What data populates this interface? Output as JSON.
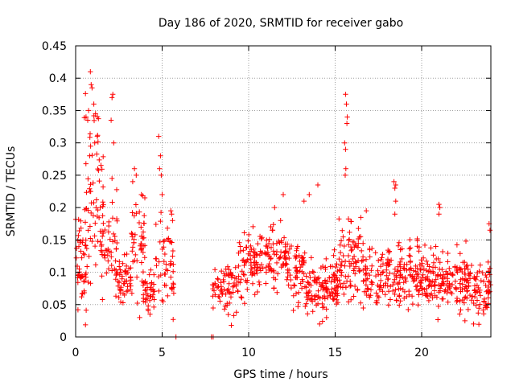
{
  "chart_data": {
    "type": "scatter",
    "title": "Day 186 of 2020, SRMTID for receiver gabo",
    "xlabel": "GPS time / hours",
    "ylabel": "SRMTID / TECUs",
    "xlim": [
      0,
      24
    ],
    "ylim": [
      0,
      0.45
    ],
    "xticks": [
      0,
      5,
      10,
      15,
      20
    ],
    "xtick_labels": [
      "0",
      "5",
      "10",
      "15",
      "20"
    ],
    "yticks": [
      0,
      0.05,
      0.1,
      0.15,
      0.2,
      0.25,
      0.3,
      0.35,
      0.4,
      0.45
    ],
    "ytick_labels": [
      "0",
      "0.05",
      "0.1",
      "0.15",
      "0.2",
      "0.25",
      "0.3",
      "0.35",
      "0.4",
      "0.45"
    ],
    "grid": true,
    "marker": "plus",
    "color": "#ff0000",
    "seed": 186,
    "point_clusters": [
      {
        "x_range": [
          0.0,
          0.6
        ],
        "count": 45,
        "y_mean": 0.11,
        "y_spread": 0.045
      },
      {
        "x_range": [
          0.5,
          1.6
        ],
        "count": 70,
        "y_mean": 0.2,
        "y_spread": 0.09
      },
      {
        "x_range": [
          1.5,
          2.4
        ],
        "count": 45,
        "y_mean": 0.15,
        "y_spread": 0.05
      },
      {
        "x_range": [
          2.3,
          3.2
        ],
        "count": 50,
        "y_mean": 0.09,
        "y_spread": 0.025
      },
      {
        "x_range": [
          3.2,
          4.0
        ],
        "count": 45,
        "y_mean": 0.14,
        "y_spread": 0.05
      },
      {
        "x_range": [
          3.9,
          4.6
        ],
        "count": 40,
        "y_mean": 0.075,
        "y_spread": 0.025
      },
      {
        "x_range": [
          4.6,
          5.7
        ],
        "count": 50,
        "y_mean": 0.12,
        "y_spread": 0.05
      },
      {
        "x_range": [
          7.9,
          9.4
        ],
        "count": 70,
        "y_mean": 0.075,
        "y_spread": 0.025
      },
      {
        "x_range": [
          9.4,
          10.6
        ],
        "count": 70,
        "y_mean": 0.11,
        "y_spread": 0.03
      },
      {
        "x_range": [
          10.6,
          12.3
        ],
        "count": 90,
        "y_mean": 0.13,
        "y_spread": 0.035
      },
      {
        "x_range": [
          12.3,
          13.3
        ],
        "count": 55,
        "y_mean": 0.1,
        "y_spread": 0.04
      },
      {
        "x_range": [
          13.3,
          14.4
        ],
        "count": 60,
        "y_mean": 0.07,
        "y_spread": 0.025
      },
      {
        "x_range": [
          14.4,
          15.2
        ],
        "count": 60,
        "y_mean": 0.08,
        "y_spread": 0.025
      },
      {
        "x_range": [
          15.2,
          16.6
        ],
        "count": 80,
        "y_mean": 0.12,
        "y_spread": 0.045
      },
      {
        "x_range": [
          16.6,
          18.2
        ],
        "count": 90,
        "y_mean": 0.09,
        "y_spread": 0.03
      },
      {
        "x_range": [
          18.2,
          19.8
        ],
        "count": 90,
        "y_mean": 0.095,
        "y_spread": 0.03
      },
      {
        "x_range": [
          19.8,
          21.2
        ],
        "count": 90,
        "y_mean": 0.09,
        "y_spread": 0.03
      },
      {
        "x_range": [
          21.2,
          22.6
        ],
        "count": 80,
        "y_mean": 0.085,
        "y_spread": 0.03
      },
      {
        "x_range": [
          22.6,
          24.0
        ],
        "count": 80,
        "y_mean": 0.075,
        "y_spread": 0.03
      }
    ],
    "notable_points": [
      [
        0.85,
        0.41
      ],
      [
        0.9,
        0.39
      ],
      [
        0.95,
        0.385
      ],
      [
        1.05,
        0.36
      ],
      [
        1.15,
        0.345
      ],
      [
        0.6,
        0.34
      ],
      [
        0.7,
        0.335
      ],
      [
        0.75,
        0.35
      ],
      [
        1.25,
        0.31
      ],
      [
        1.1,
        0.3
      ],
      [
        2.15,
        0.375
      ],
      [
        2.1,
        0.37
      ],
      [
        2.05,
        0.335
      ],
      [
        2.2,
        0.3
      ],
      [
        2.1,
        0.245
      ],
      [
        3.4,
        0.26
      ],
      [
        3.5,
        0.25
      ],
      [
        3.3,
        0.24
      ],
      [
        3.8,
        0.22
      ],
      [
        4.0,
        0.215
      ],
      [
        4.8,
        0.31
      ],
      [
        4.9,
        0.28
      ],
      [
        4.85,
        0.26
      ],
      [
        4.95,
        0.25
      ],
      [
        5.0,
        0.22
      ],
      [
        5.5,
        0.195
      ],
      [
        5.55,
        0.19
      ],
      [
        5.6,
        0.18
      ],
      [
        15.6,
        0.375
      ],
      [
        15.65,
        0.36
      ],
      [
        15.7,
        0.34
      ],
      [
        15.68,
        0.33
      ],
      [
        15.55,
        0.3
      ],
      [
        15.6,
        0.29
      ],
      [
        15.62,
        0.26
      ],
      [
        15.58,
        0.25
      ],
      [
        18.4,
        0.24
      ],
      [
        18.5,
        0.235
      ],
      [
        18.45,
        0.23
      ],
      [
        18.5,
        0.21
      ],
      [
        18.45,
        0.19
      ],
      [
        21.0,
        0.205
      ],
      [
        21.05,
        0.2
      ],
      [
        21.0,
        0.19
      ],
      [
        14.0,
        0.235
      ],
      [
        13.5,
        0.22
      ],
      [
        13.2,
        0.21
      ],
      [
        12.0,
        0.22
      ],
      [
        11.5,
        0.2
      ],
      [
        16.8,
        0.195
      ],
      [
        14.1,
        0.02
      ],
      [
        14.5,
        0.03
      ],
      [
        9.0,
        0.018
      ],
      [
        23.0,
        0.02
      ],
      [
        22.5,
        0.025
      ],
      [
        23.9,
        0.175
      ],
      [
        23.95,
        0.165
      ],
      [
        3.7,
        0.03
      ],
      [
        4.3,
        0.035
      ]
    ],
    "zero_points": [
      [
        5.8,
        0.0
      ],
      [
        7.85,
        0.0
      ],
      [
        7.95,
        0.0
      ]
    ]
  }
}
